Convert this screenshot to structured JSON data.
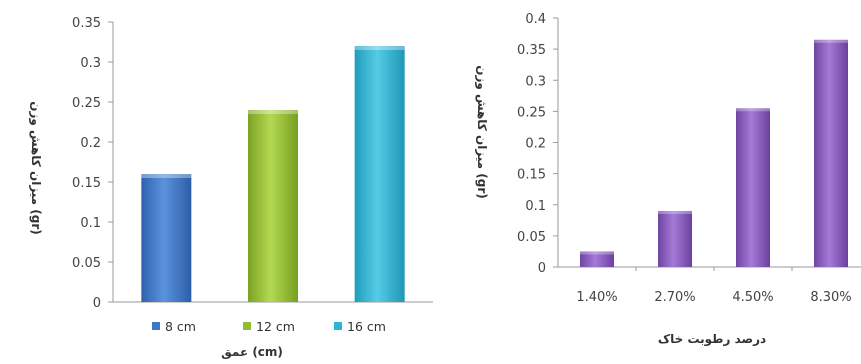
{
  "chart_data": [
    {
      "type": "bar",
      "categories": [
        "8 cm",
        "12 cm",
        "16 cm"
      ],
      "values": [
        0.16,
        0.24,
        0.32
      ],
      "colors": [
        "#3c78c8",
        "#94bc32",
        "#30b4d2"
      ],
      "title": "",
      "xlabel": "عمق (cm)",
      "ylabel": "میزان کاهش وزن (gr)",
      "ylim": [
        0,
        0.35
      ],
      "yticks": [
        "0",
        "0.05",
        "0.1",
        "0.15",
        "0.2",
        "0.25",
        "0.3",
        "0.35"
      ],
      "legend": {
        "placement": "bottom",
        "entries": [
          "8 cm",
          "12 cm",
          "16 cm"
        ]
      },
      "grid": false
    },
    {
      "type": "bar",
      "categories": [
        "1.40%",
        "2.70%",
        "4.50%",
        "8.30%"
      ],
      "values": [
        0.025,
        0.09,
        0.255,
        0.365
      ],
      "colors": [
        "#8a5cc0"
      ],
      "title": "",
      "xlabel": "درصد رطوبت خاک",
      "ylabel": "میزان کاهش وزن (gr)",
      "ylim": [
        0,
        0.4
      ],
      "yticks": [
        "0",
        "0.05",
        "0.1",
        "0.15",
        "0.2",
        "0.25",
        "0.3",
        "0.35",
        "0.4"
      ],
      "grid": false
    }
  ]
}
